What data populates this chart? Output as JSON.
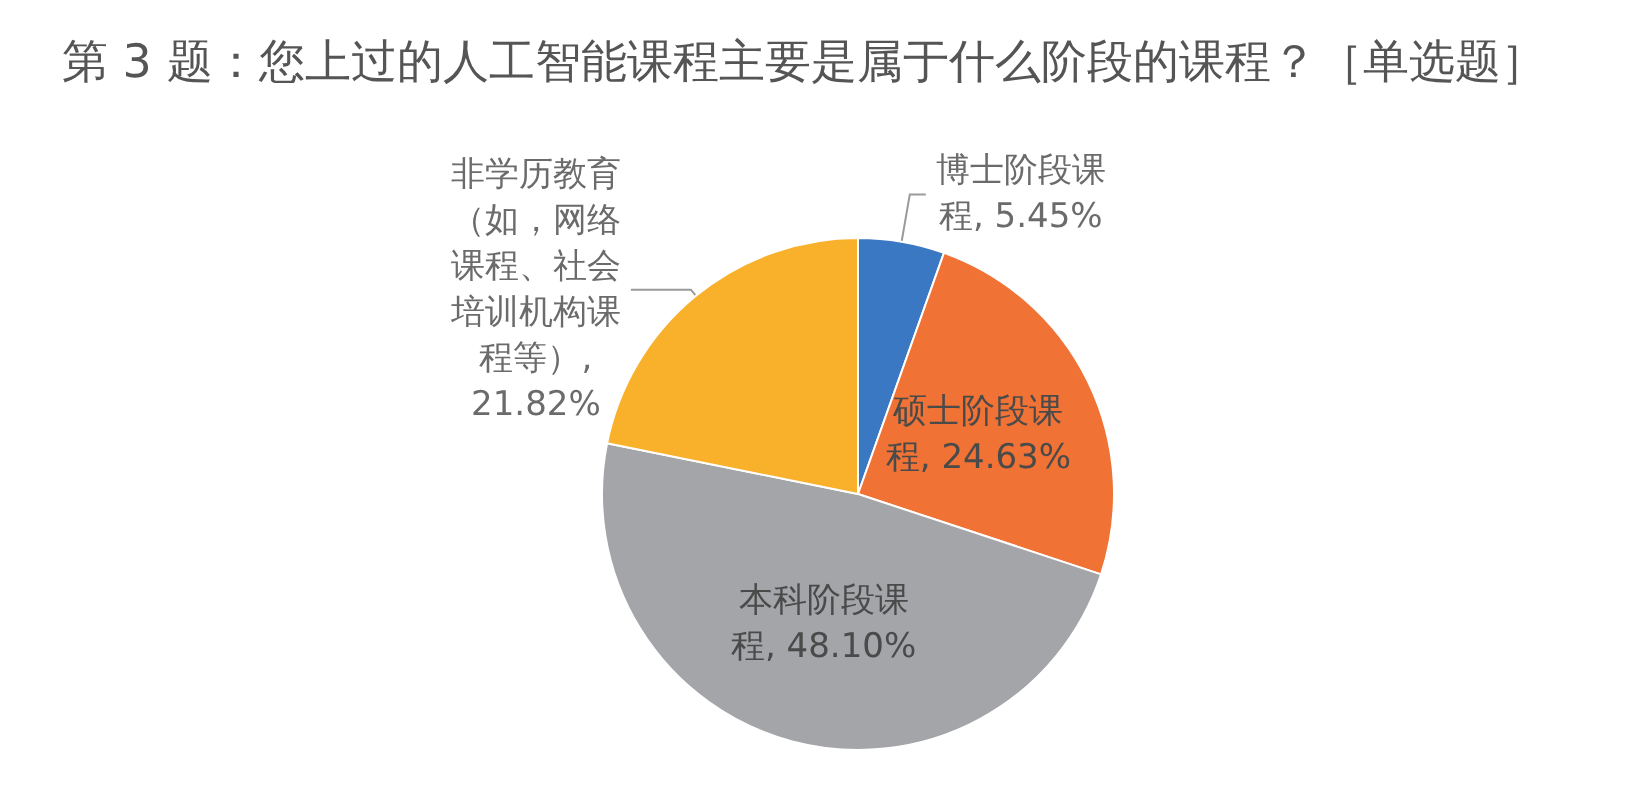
{
  "chart_data": {
    "type": "pie",
    "title": "第 3 题：您上过的人工智能课程主要是属于什么阶段的课程？［单选题］",
    "categories": [
      "博士阶段课程",
      "硕士阶段课程",
      "本科阶段课程",
      "非学历教育（如，网络课程、社会培训机构课程等）"
    ],
    "values": [
      5.45,
      24.63,
      48.1,
      21.82
    ],
    "value_labels": [
      ", 5.45%",
      ", 24.63%",
      ", 48.10%",
      ", 21.82%"
    ],
    "colors": [
      "#3a78c4",
      "#f07234",
      "#a3a5a9",
      "#f9b02a"
    ],
    "legend": false
  }
}
